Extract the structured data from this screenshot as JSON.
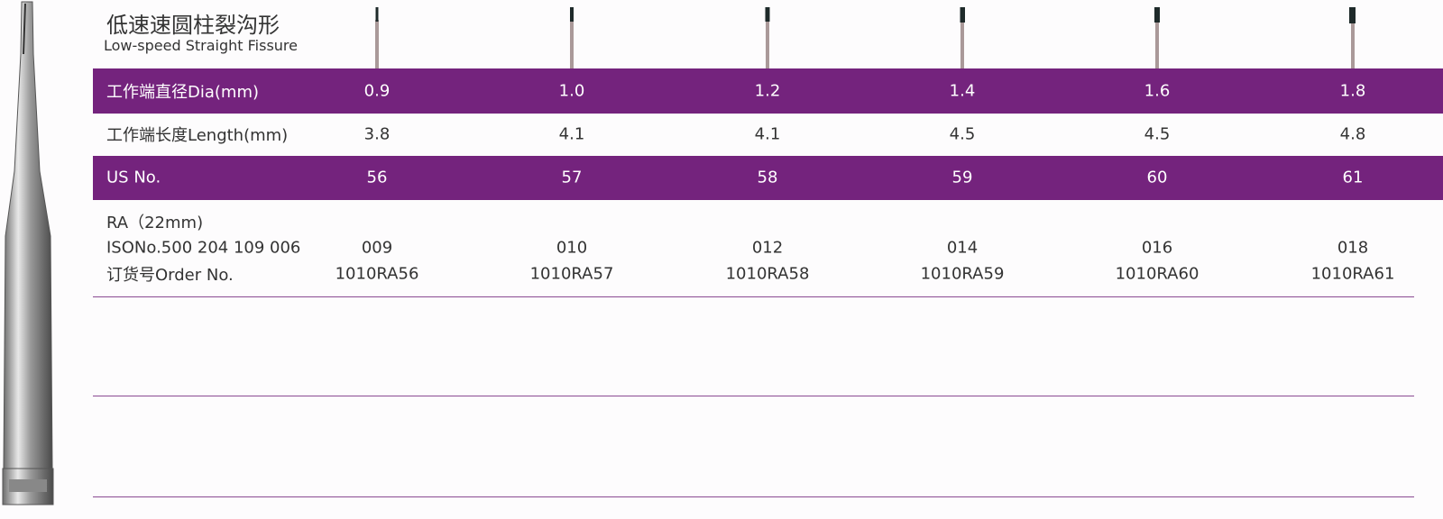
{
  "header": {
    "title": "低速速圆柱裂沟形",
    "subtitle": "Low-speed Straight Fissure"
  },
  "table": {
    "rows": [
      {
        "label": "工作端直径Dia(mm)",
        "cells": [
          "0.9",
          "1.0",
          "1.2",
          "1.4",
          "1.6",
          "1.8"
        ]
      },
      {
        "label": "工作端长度Length(mm)",
        "cells": [
          "3.8",
          "4.1",
          "4.1",
          "4.5",
          "4.5",
          "4.8"
        ]
      },
      {
        "label": "US No.",
        "cells": [
          "56",
          "57",
          "58",
          "59",
          "60",
          "61"
        ]
      }
    ],
    "order_block": {
      "label_lines": [
        "RA（22mm)",
        "ISONo.500 204 109 006",
        "订货号Order No."
      ],
      "iso": [
        "009",
        "010",
        "012",
        "014",
        "016",
        "018"
      ],
      "order_no": [
        "1010RA56",
        "1010RA57",
        "1010RA58",
        "1010RA59",
        "1010RA60",
        "1010RA61"
      ]
    }
  }
}
